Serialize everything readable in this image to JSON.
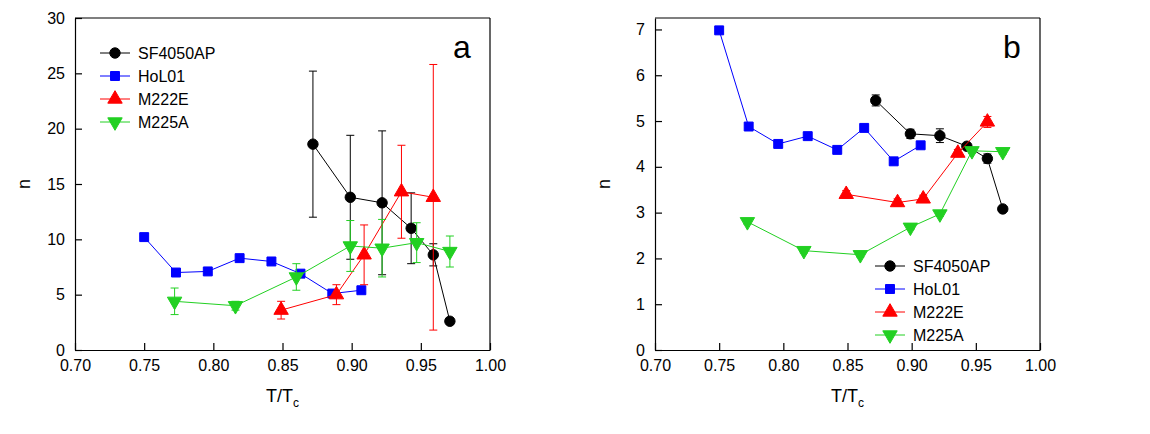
{
  "chart_data": [
    {
      "type": "line",
      "annotation": "a",
      "ylabel": "n",
      "xlabel": "T/T",
      "xlabel_subscript": "c",
      "xlim": [
        0.7,
        1.0
      ],
      "xticks": [
        {
          "value": 0.7,
          "label": "0.70"
        },
        0.75,
        {
          "value": 0.8,
          "label": "0.80"
        },
        0.85,
        {
          "value": 0.9,
          "label": "0.90"
        },
        0.95,
        {
          "value": 1.0,
          "label": "1.00"
        }
      ],
      "ylim": [
        0,
        30
      ],
      "yticks": [
        0,
        5,
        10,
        15,
        20,
        25,
        30
      ],
      "legend": "upper left",
      "series": [
        {
          "name": "SF4050AP",
          "color": "#000000",
          "marker": "circle",
          "line_style": "solid",
          "x": [
            0.872,
            0.899,
            0.922,
            0.943,
            0.959,
            0.971
          ],
          "values": [
            18.6,
            13.8,
            13.3,
            11.0,
            8.6,
            2.6
          ],
          "errors": [
            6.6,
            5.6,
            6.5,
            3.2,
            1.0,
            0.3
          ]
        },
        {
          "name": "HoL01",
          "color": "#0000ff",
          "marker": "square",
          "line_style": "solid",
          "x": [
            0.75,
            0.773,
            0.796,
            0.819,
            0.842,
            0.863,
            0.886,
            0.907
          ],
          "values": [
            10.2,
            7.0,
            7.1,
            8.3,
            8.0,
            6.9,
            5.1,
            5.4
          ],
          "errors": [
            0.3,
            0.2,
            0.2,
            0.2,
            0.2,
            0.2,
            0.2,
            0.2
          ]
        },
        {
          "name": "M222E",
          "color": "#ff0000",
          "marker": "triangle-up",
          "line_style": "solid",
          "x": [
            0.849,
            0.889,
            0.909,
            0.936,
            0.959
          ],
          "values": [
            3.6,
            5.0,
            8.6,
            14.3,
            13.8
          ],
          "errors": [
            0.8,
            0.9,
            2.7,
            4.2,
            12.0
          ]
        },
        {
          "name": "M225A",
          "color": "#22d022",
          "marker": "triangle-down",
          "line_style": "solid",
          "x": [
            0.772,
            0.816,
            0.86,
            0.899,
            0.922,
            0.947,
            0.971
          ],
          "values": [
            4.4,
            4.0,
            6.6,
            9.4,
            9.2,
            9.7,
            8.9
          ],
          "errors": [
            1.2,
            0.4,
            1.2,
            2.3,
            2.6,
            1.8,
            1.4
          ]
        }
      ]
    },
    {
      "type": "line",
      "annotation": "b",
      "ylabel": "n",
      "xlabel": "T/T",
      "xlabel_subscript": "c",
      "xlim": [
        0.7,
        1.0
      ],
      "xticks": [
        {
          "value": 0.7,
          "label": "0.70"
        },
        0.75,
        {
          "value": 0.8,
          "label": "0.80"
        },
        0.85,
        {
          "value": 0.9,
          "label": "0.90"
        },
        0.95,
        {
          "value": 1.0,
          "label": "1.00"
        }
      ],
      "ylim": [
        0,
        7.25
      ],
      "yticks": [
        0,
        1,
        2,
        3,
        4,
        5,
        6,
        7
      ],
      "legend": "lower right",
      "series": [
        {
          "name": "SF4050AP",
          "color": "#000000",
          "marker": "circle",
          "line_style": "solid",
          "x": [
            0.872,
            0.899,
            0.922,
            0.943,
            0.959,
            0.971
          ],
          "values": [
            5.45,
            4.72,
            4.68,
            4.45,
            4.18,
            3.08
          ],
          "errors": [
            0.12,
            0.1,
            0.15,
            0.05,
            0.1,
            0.05
          ]
        },
        {
          "name": "HoL01",
          "color": "#0000ff",
          "marker": "square",
          "line_style": "solid",
          "x": [
            0.75,
            0.773,
            0.796,
            0.819,
            0.842,
            0.863,
            0.886,
            0.907
          ],
          "values": [
            6.98,
            4.88,
            4.5,
            4.67,
            4.37,
            4.85,
            4.12,
            4.47
          ],
          "errors": [
            0.03,
            0.03,
            0.03,
            0.03,
            0.03,
            0.03,
            0.03,
            0.03
          ]
        },
        {
          "name": "M222E",
          "color": "#ff0000",
          "marker": "triangle-up",
          "line_style": "solid",
          "x": [
            0.849,
            0.889,
            0.909,
            0.936,
            0.959
          ],
          "values": [
            3.4,
            3.22,
            3.3,
            4.3,
            4.98
          ],
          "errors": [
            0.08,
            0.08,
            0.08,
            0.08,
            0.12
          ]
        },
        {
          "name": "M225A",
          "color": "#22d022",
          "marker": "triangle-down",
          "line_style": "solid",
          "x": [
            0.772,
            0.816,
            0.86,
            0.899,
            0.922,
            0.947,
            0.971
          ],
          "values": [
            2.8,
            2.17,
            2.08,
            2.68,
            2.97,
            4.35,
            4.33
          ],
          "errors": [
            0.05,
            0.05,
            0.05,
            0.05,
            0.05,
            0.05,
            0.05
          ]
        }
      ]
    }
  ]
}
